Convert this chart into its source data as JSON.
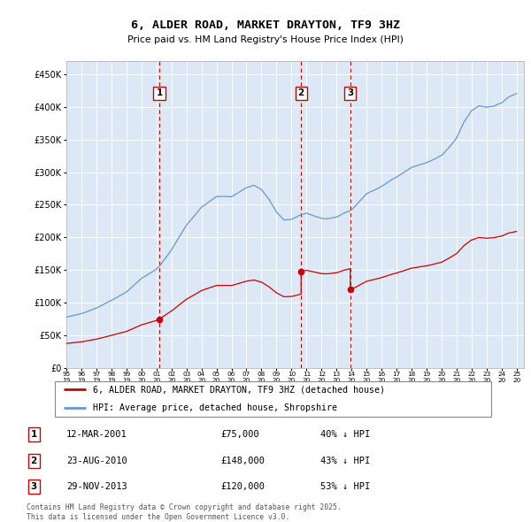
{
  "title": "6, ALDER ROAD, MARKET DRAYTON, TF9 3HZ",
  "subtitle": "Price paid vs. HM Land Registry's House Price Index (HPI)",
  "ytick_values": [
    0,
    50000,
    100000,
    150000,
    200000,
    250000,
    300000,
    350000,
    400000,
    450000
  ],
  "ylim": [
    0,
    470000
  ],
  "xlim_start": 1995.0,
  "xlim_end": 2025.5,
  "plot_bg_color": "#dce8f5",
  "grid_color": "#ffffff",
  "red_line_color": "#cc0000",
  "blue_line_color": "#6699cc",
  "dashed_line_color": "#cc0000",
  "sale_markers": [
    {
      "num": 1,
      "year": 2001.19,
      "price": 75000,
      "label": "12-MAR-2001",
      "price_str": "£75,000",
      "pct": "40% ↓ HPI"
    },
    {
      "num": 2,
      "year": 2010.64,
      "price": 148000,
      "label": "23-AUG-2010",
      "price_str": "£148,000",
      "pct": "43% ↓ HPI"
    },
    {
      "num": 3,
      "year": 2013.92,
      "price": 120000,
      "label": "29-NOV-2013",
      "price_str": "£120,000",
      "pct": "53% ↓ HPI"
    }
  ],
  "legend_red_label": "6, ALDER ROAD, MARKET DRAYTON, TF9 3HZ (detached house)",
  "legend_blue_label": "HPI: Average price, detached house, Shropshire",
  "footnote": "Contains HM Land Registry data © Crown copyright and database right 2025.\nThis data is licensed under the Open Government Licence v3.0."
}
